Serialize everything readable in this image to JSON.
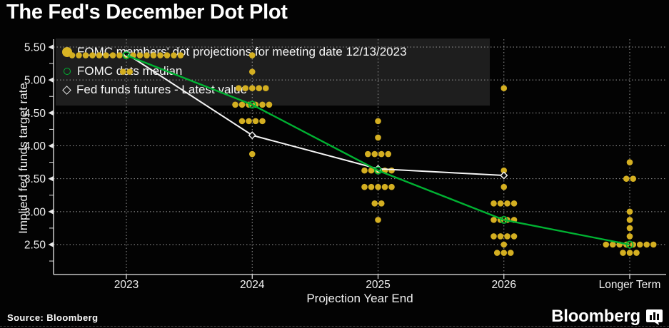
{
  "header": {
    "title": "The Fed's December Dot Plot"
  },
  "legend": {
    "items": [
      {
        "marker": "filled-yellow-circle",
        "label": "FOMC members' dot projections for meeting date 12/13/2023"
      },
      {
        "marker": "open-green-circle",
        "label": "FOMC dots median"
      },
      {
        "marker": "open-white-diamond",
        "label": "Fed funds futures - Latest value"
      }
    ]
  },
  "chart_data": {
    "type": "scatter",
    "title": "The Fed's December Dot Plot",
    "xlabel": "Projection Year End",
    "ylabel": "Implied fed funds target rate",
    "categories": [
      "2023",
      "2024",
      "2025",
      "2026",
      "Longer Term"
    ],
    "y_tick_values": [
      5.5,
      5.0,
      4.5,
      4.0,
      3.5,
      3.0,
      2.5
    ],
    "y_tick_labels": [
      "5.50",
      "5.00",
      "4.50",
      "4.00",
      "3.50",
      "3.00",
      "2.50"
    ],
    "y_minor_ticks": [
      5.25,
      4.75,
      4.25,
      3.75,
      3.25,
      2.75,
      2.25
    ],
    "ylim": [
      2.05,
      5.62
    ],
    "grid": "dashed-both",
    "legend_position": "top-left",
    "colors": {
      "dots": "#d4af21",
      "median": "#00b232",
      "futures": "#f5f5f5",
      "grid": "#9a9a9a",
      "axis": "#e8e8e8"
    },
    "series": [
      {
        "name": "FOMC members' dot projections for meeting date 12/13/2023",
        "type": "dots",
        "color": "#d4af21",
        "points": [
          {
            "category": "2023",
            "rate": 5.375,
            "count": 17
          },
          {
            "category": "2023",
            "rate": 5.125,
            "count": 2
          },
          {
            "category": "2024",
            "rate": 5.375,
            "count": 1
          },
          {
            "category": "2024",
            "rate": 5.125,
            "count": 1
          },
          {
            "category": "2024",
            "rate": 4.875,
            "count": 5
          },
          {
            "category": "2024",
            "rate": 4.625,
            "count": 6
          },
          {
            "category": "2024",
            "rate": 4.375,
            "count": 4
          },
          {
            "category": "2024",
            "rate": 3.875,
            "count": 1
          },
          {
            "category": "2025",
            "rate": 4.375,
            "count": 1
          },
          {
            "category": "2025",
            "rate": 4.125,
            "count": 1
          },
          {
            "category": "2025",
            "rate": 3.875,
            "count": 4
          },
          {
            "category": "2025",
            "rate": 3.625,
            "count": 5
          },
          {
            "category": "2025",
            "rate": 3.375,
            "count": 5
          },
          {
            "category": "2025",
            "rate": 3.125,
            "count": 2
          },
          {
            "category": "2025",
            "rate": 2.875,
            "count": 1
          },
          {
            "category": "2026",
            "rate": 4.875,
            "count": 1
          },
          {
            "category": "2026",
            "rate": 3.625,
            "count": 1
          },
          {
            "category": "2026",
            "rate": 3.375,
            "count": 1
          },
          {
            "category": "2026",
            "rate": 3.125,
            "count": 4
          },
          {
            "category": "2026",
            "rate": 2.875,
            "count": 4
          },
          {
            "category": "2026",
            "rate": 2.625,
            "count": 4
          },
          {
            "category": "2026",
            "rate": 2.5,
            "count": 1
          },
          {
            "category": "2026",
            "rate": 2.375,
            "count": 3
          },
          {
            "category": "Longer Term",
            "rate": 3.75,
            "count": 1
          },
          {
            "category": "Longer Term",
            "rate": 3.5,
            "count": 2
          },
          {
            "category": "Longer Term",
            "rate": 3.0,
            "count": 1
          },
          {
            "category": "Longer Term",
            "rate": 2.875,
            "count": 1
          },
          {
            "category": "Longer Term",
            "rate": 2.75,
            "count": 1
          },
          {
            "category": "Longer Term",
            "rate": 2.625,
            "count": 1
          },
          {
            "category": "Longer Term",
            "rate": 2.5,
            "count": 8
          },
          {
            "category": "Longer Term",
            "rate": 2.375,
            "count": 3
          }
        ]
      },
      {
        "name": "FOMC dots median",
        "type": "line-open-circle",
        "color": "#00b232",
        "values": [
          5.375,
          4.625,
          3.625,
          2.875,
          2.5
        ]
      },
      {
        "name": "Fed funds futures - Latest value",
        "type": "line-open-diamond",
        "color": "#f5f5f5",
        "values": [
          5.4,
          4.16,
          3.65,
          3.55,
          null
        ]
      }
    ]
  },
  "footer": {
    "source": "Source: Bloomberg",
    "brand": "Bloomberg"
  }
}
